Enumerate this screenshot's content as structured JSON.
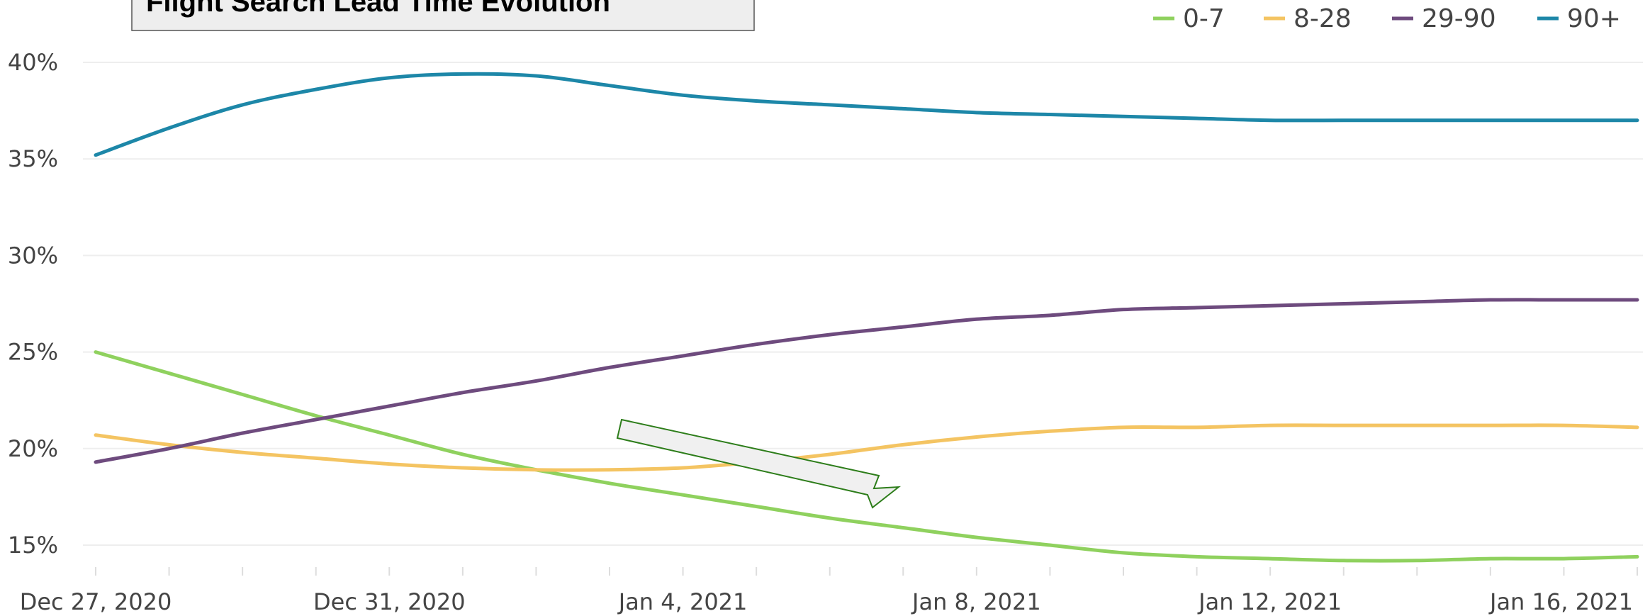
{
  "chart_data": {
    "type": "line",
    "title": "Flight Search Lead Time Evolution",
    "x_tick_labels": [
      "Dec 27, 2020",
      "Dec 31, 2020",
      "Jan 4, 2021",
      "Jan 8, 2021",
      "Jan 12, 2021",
      "Jan 16, 2021"
    ],
    "x": [
      "2020-12-27",
      "2020-12-28",
      "2020-12-29",
      "2020-12-30",
      "2020-12-31",
      "2021-01-01",
      "2021-01-02",
      "2021-01-03",
      "2021-01-04",
      "2021-01-05",
      "2021-01-06",
      "2021-01-07",
      "2021-01-08",
      "2021-01-09",
      "2021-01-10",
      "2021-01-11",
      "2021-01-12",
      "2021-01-13",
      "2021-01-14",
      "2021-01-15",
      "2021-01-16",
      "2021-01-17"
    ],
    "y_tick_labels": [
      "15%",
      "20%",
      "25%",
      "30%",
      "35%",
      "40%"
    ],
    "y_ticks": [
      15,
      20,
      25,
      30,
      35,
      40
    ],
    "ylim": [
      14.2,
      40.5
    ],
    "grid": true,
    "legend_position": "top-right",
    "series": [
      {
        "name": "0-7",
        "color": "#8fd15e",
        "values": [
          25.0,
          23.9,
          22.8,
          21.7,
          20.7,
          19.7,
          18.9,
          18.2,
          17.6,
          17.0,
          16.4,
          15.9,
          15.4,
          15.0,
          14.6,
          14.4,
          14.3,
          14.2,
          14.2,
          14.3,
          14.3,
          14.4
        ]
      },
      {
        "name": "8-28",
        "color": "#f4c462",
        "values": [
          20.7,
          20.2,
          19.8,
          19.5,
          19.2,
          19.0,
          18.9,
          18.9,
          19.0,
          19.3,
          19.7,
          20.2,
          20.6,
          20.9,
          21.1,
          21.1,
          21.2,
          21.2,
          21.2,
          21.2,
          21.2,
          21.1
        ]
      },
      {
        "name": "29-90",
        "color": "#6e4b7e",
        "values": [
          19.3,
          20.0,
          20.8,
          21.5,
          22.2,
          22.9,
          23.5,
          24.2,
          24.8,
          25.4,
          25.9,
          26.3,
          26.7,
          26.9,
          27.2,
          27.3,
          27.4,
          27.5,
          27.6,
          27.7,
          27.7,
          27.7
        ]
      },
      {
        "name": "90+",
        "color": "#1d87a8",
        "values": [
          35.2,
          36.6,
          37.8,
          38.6,
          39.2,
          39.4,
          39.3,
          38.8,
          38.3,
          38.0,
          37.8,
          37.6,
          37.4,
          37.3,
          37.2,
          37.1,
          37.0,
          37.0,
          37.0,
          37.0,
          37.0,
          37.0
        ]
      }
    ],
    "colors": {
      "grid": "#eeeeee",
      "tick_text": "#444444",
      "title_box_fill": "#eeeeee",
      "arrow_fill": "#f0f0f0",
      "arrow_stroke": "#2d7d1a"
    }
  }
}
